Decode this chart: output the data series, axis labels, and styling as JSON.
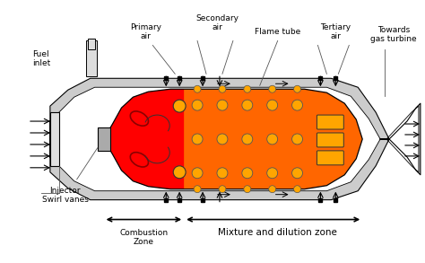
{
  "fig_width": 4.74,
  "fig_height": 2.93,
  "dpi": 100,
  "bg_color": "#ffffff",
  "outer_color": "#cccccc",
  "inner_color": "#FF6600",
  "comb_color": "#FF0000",
  "hole_color": "#FFA500",
  "slot_color": "#FFA500",
  "line_color": "#000000",
  "font_size": 6.5,
  "labels": {
    "fuel_inlet": "Fuel\ninlet",
    "primary_air": "Primary\nair",
    "secondary_air": "Secondary\nair",
    "flame_tube": "Flame tube",
    "tertiary_air": "Tertiary\nair",
    "towards_gas_turbine": "Towards\ngas turbine",
    "injector_swirl": "Injector\nSwirl vanes",
    "combustion_zone": "Combustion\nZone",
    "mixture_dilution": "Mixture and dilution zone"
  }
}
